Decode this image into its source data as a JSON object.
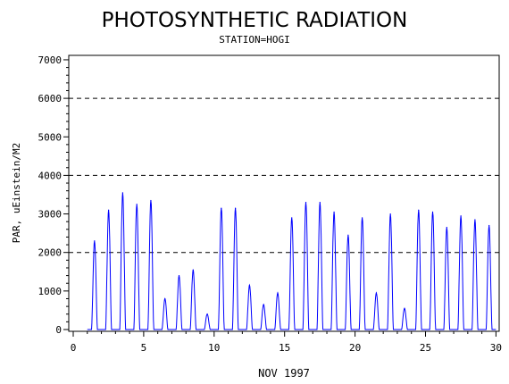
{
  "chart_data": {
    "type": "line",
    "title": "PHOTOSYNTHETIC RADIATION",
    "subtitle": "STATION=HOGI",
    "xlabel": "NOV 1997",
    "ylabel": "PAR, uEinstein/M2",
    "xlim": [
      0,
      30
    ],
    "ylim": [
      0,
      7000
    ],
    "x_ticks": [
      0,
      5,
      10,
      15,
      20,
      25,
      30
    ],
    "y_ticks": [
      0,
      1000,
      2000,
      3000,
      4000,
      5000,
      6000,
      7000
    ],
    "reference_lines": [
      2000,
      4000,
      6000
    ],
    "line_color": "#0000ff",
    "series": [
      {
        "daily_peaks": [
          {
            "day": 1,
            "peak": 2300
          },
          {
            "day": 2,
            "peak": 3100
          },
          {
            "day": 3,
            "peak": 3550
          },
          {
            "day": 4,
            "peak": 3250
          },
          {
            "day": 5,
            "peak": 3350
          },
          {
            "day": 6,
            "peak": 800
          },
          {
            "day": 7,
            "peak": 1400
          },
          {
            "day": 8,
            "peak": 1550
          },
          {
            "day": 9,
            "peak": 400
          },
          {
            "day": 10,
            "peak": 3150
          },
          {
            "day": 11,
            "peak": 3150
          },
          {
            "day": 12,
            "peak": 1150
          },
          {
            "day": 13,
            "peak": 650
          },
          {
            "day": 14,
            "peak": 950
          },
          {
            "day": 15,
            "peak": 2900
          },
          {
            "day": 16,
            "peak": 3300
          },
          {
            "day": 17,
            "peak": 3300
          },
          {
            "day": 18,
            "peak": 3050
          },
          {
            "day": 19,
            "peak": 2450
          },
          {
            "day": 20,
            "peak": 2900
          },
          {
            "day": 21,
            "peak": 950
          },
          {
            "day": 22,
            "peak": 3000
          },
          {
            "day": 23,
            "peak": 550
          },
          {
            "day": 24,
            "peak": 3100
          },
          {
            "day": 25,
            "peak": 3050
          },
          {
            "day": 26,
            "peak": 2650
          },
          {
            "day": 27,
            "peak": 2950
          },
          {
            "day": 28,
            "peak": 2850
          },
          {
            "day": 29,
            "peak": 2700
          }
        ]
      }
    ]
  }
}
